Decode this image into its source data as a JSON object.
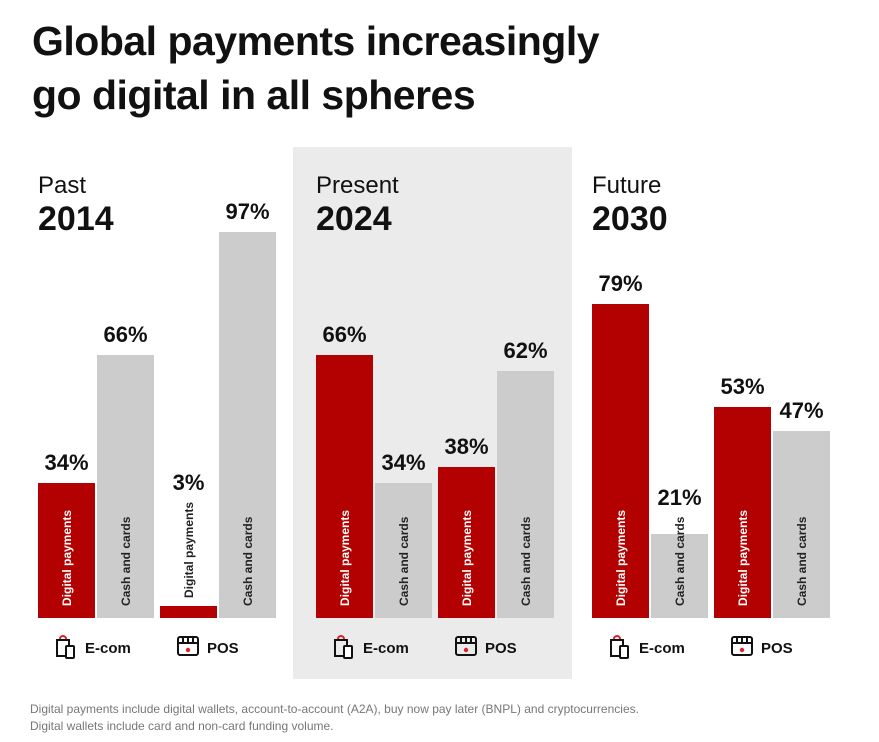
{
  "title_lines": [
    "Global payments increasingly",
    "go digital in all spheres"
  ],
  "colors": {
    "digital": "#b30000",
    "cash": "#cccccc",
    "highlight_panel": "#ebebeb"
  },
  "chart_data": {
    "type": "bar",
    "title": "Global payments increasingly go digital in all spheres",
    "ylim": [
      0,
      100
    ],
    "unit": "%",
    "groups": [
      {
        "period": "Past",
        "year": "2014",
        "categories": [
          {
            "name": "E-com",
            "icon": "shopping-bag-phone-icon",
            "series": [
              {
                "name": "Digital payments",
                "value": 34
              },
              {
                "name": "Cash and cards",
                "value": 66
              }
            ]
          },
          {
            "name": "POS",
            "icon": "storefront-icon",
            "series": [
              {
                "name": "Digital payments",
                "value": 3
              },
              {
                "name": "Cash and cards",
                "value": 97
              }
            ]
          }
        ]
      },
      {
        "period": "Present",
        "year": "2024",
        "highlighted": true,
        "categories": [
          {
            "name": "E-com",
            "icon": "shopping-bag-phone-icon",
            "series": [
              {
                "name": "Digital payments",
                "value": 66
              },
              {
                "name": "Cash and cards",
                "value": 34
              }
            ]
          },
          {
            "name": "POS",
            "icon": "storefront-icon",
            "series": [
              {
                "name": "Digital payments",
                "value": 38
              },
              {
                "name": "Cash and cards",
                "value": 62
              }
            ]
          }
        ]
      },
      {
        "period": "Future",
        "year": "2030",
        "categories": [
          {
            "name": "E-com",
            "icon": "shopping-bag-phone-icon",
            "series": [
              {
                "name": "Digital payments",
                "value": 79
              },
              {
                "name": "Cash and cards",
                "value": 21
              }
            ]
          },
          {
            "name": "POS",
            "icon": "storefront-icon",
            "series": [
              {
                "name": "Digital payments",
                "value": 53
              },
              {
                "name": "Cash and cards",
                "value": 47
              }
            ]
          }
        ]
      }
    ]
  },
  "footnote": [
    "Digital payments include digital wallets, account-to-account (A2A), buy now pay later (BNPL) and cryptocurrencies.",
    "Digital wallets include card and non-card funding volume."
  ]
}
